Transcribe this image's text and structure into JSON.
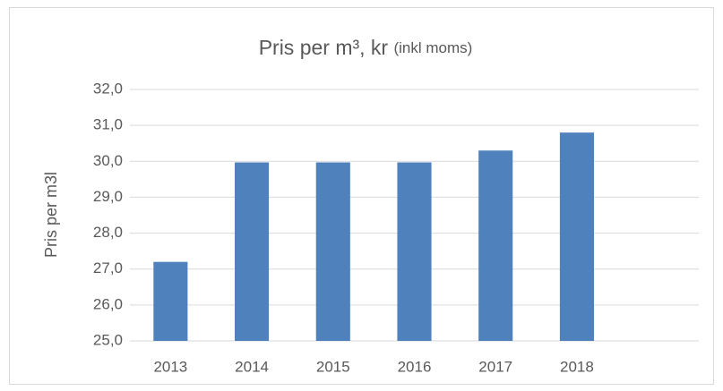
{
  "chart_data": {
    "type": "bar",
    "title": "Pris per m³, kr",
    "title_note": "(inkl moms)",
    "y_label": "Pris per m3l",
    "categories": [
      "2013",
      "2014",
      "2015",
      "2016",
      "2017",
      "2018",
      null
    ],
    "values": [
      27.2,
      29.97,
      29.97,
      29.97,
      30.3,
      30.8,
      null
    ],
    "color": "#4f81bd",
    "ylim": [
      25,
      32
    ],
    "yticks": [
      {
        "value": 25,
        "label": "25,0"
      },
      {
        "value": 26,
        "label": "26,0"
      },
      {
        "value": 27,
        "label": "27,0"
      },
      {
        "value": 28,
        "label": "28,0"
      },
      {
        "value": 29,
        "label": "29,0"
      },
      {
        "value": 30,
        "label": "30,0"
      },
      {
        "value": 31,
        "label": "31,0"
      },
      {
        "value": 32,
        "label": "32,0"
      }
    ],
    "grid": true
  }
}
